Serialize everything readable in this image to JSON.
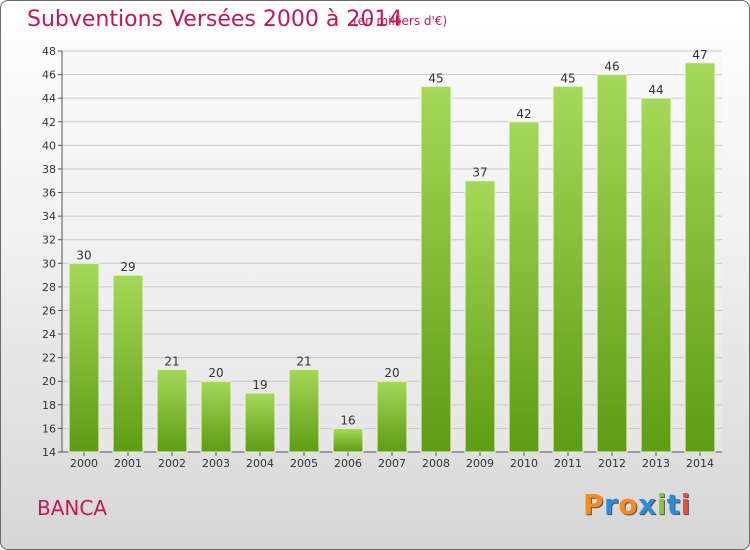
{
  "title": "Subventions Versées 2000 à 2014",
  "subtitle": "(en milliers d'€)",
  "commune": "BANCA",
  "logo": {
    "text": "Proxiti",
    "letters": [
      {
        "ch": "P",
        "color": "#f28c1e"
      },
      {
        "ch": "r",
        "color": "#2e8bd8"
      },
      {
        "ch": "o",
        "color": "#f28c1e"
      },
      {
        "ch": "x",
        "color": "#2e8bd8"
      },
      {
        "ch": "i",
        "color": "#8cc63f"
      },
      {
        "ch": "t",
        "color": "#2e8bd8"
      },
      {
        "ch": "i",
        "color": "#e94f3a"
      }
    ]
  },
  "colors": {
    "bar_top": "#a6d85a",
    "bar_bottom": "#5e9c14",
    "accent": "#c2185b"
  },
  "chart_data": {
    "type": "bar",
    "title": "Subventions Versées 2000 à 2014",
    "subtitle": "(en milliers d'€)",
    "categories": [
      "2000",
      "2001",
      "2002",
      "2003",
      "2004",
      "2005",
      "2006",
      "2007",
      "2008",
      "2009",
      "2010",
      "2011",
      "2012",
      "2013",
      "2014"
    ],
    "values": [
      30,
      29,
      21,
      20,
      19,
      21,
      16,
      20,
      45,
      37,
      42,
      45,
      46,
      44,
      47
    ],
    "ylim": [
      14,
      48
    ],
    "yticks": [
      14,
      16,
      18,
      20,
      22,
      24,
      26,
      28,
      30,
      32,
      34,
      36,
      38,
      40,
      42,
      44,
      46,
      48
    ],
    "grid": true,
    "data_labels": true
  }
}
